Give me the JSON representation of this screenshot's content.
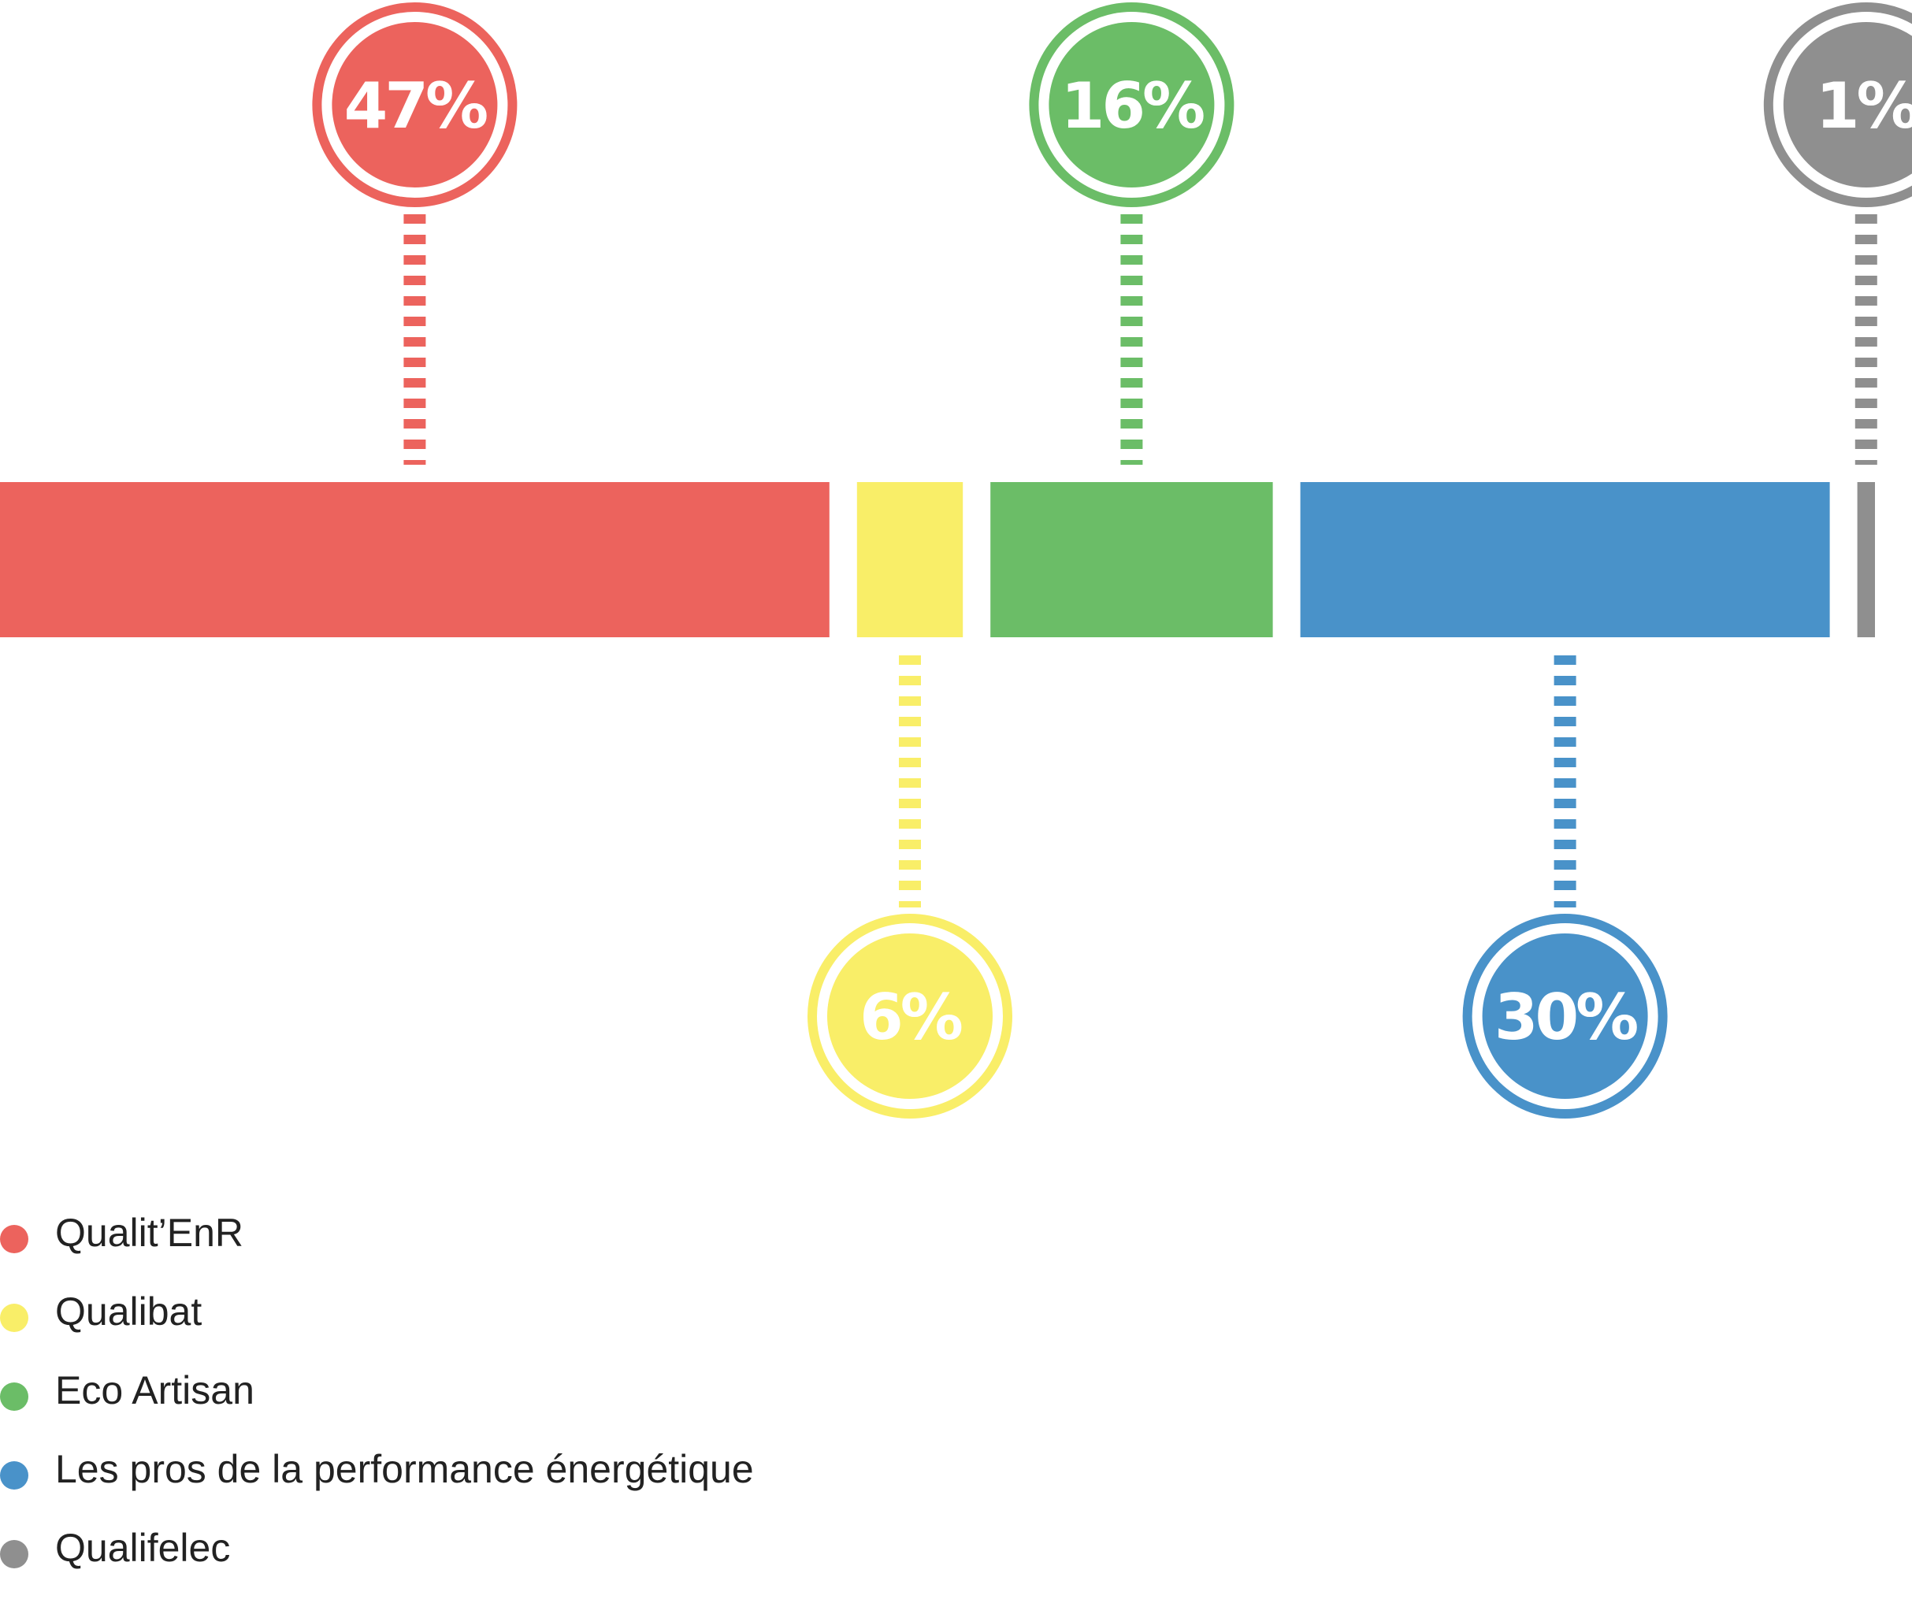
{
  "chart_data": {
    "type": "bar",
    "orientation": "horizontal-stacked",
    "categories": [
      "Qualit’EnR",
      "Qualibat",
      "Eco Artisan",
      "Les pros de la performance énergétique",
      "Qualifelec"
    ],
    "values": [
      47,
      6,
      16,
      30,
      1
    ],
    "labels": [
      "47%",
      "6%",
      "16%",
      "30%",
      "1%"
    ],
    "colors": [
      "#ec635d",
      "#f9ee68",
      "#6bbd67",
      "#4992c9",
      "#8f8f8f"
    ],
    "callout_side": [
      "top",
      "bottom",
      "top",
      "bottom",
      "top"
    ],
    "legend_position": "bottom-left"
  },
  "legend": [
    {
      "label": "Qualit’EnR",
      "color": "#ec635d"
    },
    {
      "label": "Qualibat",
      "color": "#f9ee68"
    },
    {
      "label": "Eco Artisan",
      "color": "#6bbd67"
    },
    {
      "label": "Les pros de la performance énergétique",
      "color": "#4992c9"
    },
    {
      "label": "Qualifelec",
      "color": "#8f8f8f"
    }
  ]
}
